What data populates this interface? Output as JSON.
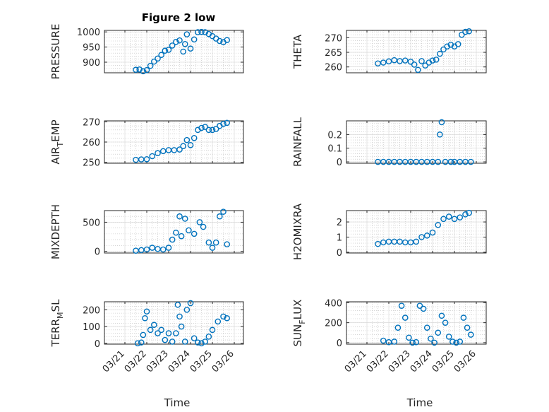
{
  "figure_title": "Figure 2 low",
  "time_ticks": [
    "03/21",
    "03/22",
    "03/23",
    "03/24",
    "03/25",
    "03/26"
  ],
  "xlabel": "Time",
  "marker_color": "#0072BD",
  "chart_data": [
    {
      "type": "scatter",
      "ylabel": "PRESSURE",
      "ylabel_sub": "",
      "ylabel_after": "",
      "ylim": [
        865,
        1005
      ],
      "yticks": [
        900,
        950,
        1000
      ],
      "x": [
        "03/21 12:00",
        "03/21 16:00",
        "03/21 20:00",
        "03/22 00:00",
        "03/22 04:00",
        "03/22 08:00",
        "03/22 12:00",
        "03/22 16:00",
        "03/22 20:00",
        "03/23 00:00",
        "03/23 04:00",
        "03/23 08:00",
        "03/23 12:00",
        "03/23 16:00",
        "03/23 18:00",
        "03/23 20:00",
        "03/24 00:00",
        "03/24 04:00",
        "03/24 08:00",
        "03/24 12:00",
        "03/24 16:00",
        "03/24 20:00",
        "03/25 00:00",
        "03/25 04:00",
        "03/25 08:00",
        "03/25 12:00",
        "03/25 16:00"
      ],
      "y": [
        875,
        876,
        870,
        874,
        888,
        902,
        912,
        924,
        938,
        941,
        955,
        967,
        972,
        935,
        960,
        992,
        945,
        975,
        999,
        1000,
        999,
        993,
        986,
        978,
        970,
        966,
        973
      ]
    },
    {
      "type": "scatter",
      "ylabel": "THETA",
      "ylabel_sub": "",
      "ylabel_after": "",
      "ylim": [
        258,
        272.5
      ],
      "yticks": [
        260,
        265,
        270
      ],
      "x": [
        "03/21 12:00",
        "03/21 18:00",
        "03/22 00:00",
        "03/22 06:00",
        "03/22 12:00",
        "03/22 18:00",
        "03/23 00:00",
        "03/23 04:00",
        "03/23 08:00",
        "03/23 12:00",
        "03/23 16:00",
        "03/23 20:00",
        "03/24 00:00",
        "03/24 04:00",
        "03/24 08:00",
        "03/24 12:00",
        "03/24 16:00",
        "03/24 20:00",
        "03/25 00:00",
        "03/25 04:00",
        "03/25 08:00",
        "03/25 12:00",
        "03/25 16:00"
      ],
      "y": [
        261.2,
        261.5,
        261.9,
        262.3,
        262.0,
        262.2,
        261.8,
        260.8,
        259.0,
        262.0,
        260.5,
        261.5,
        262.2,
        262.5,
        264.5,
        266.0,
        267.0,
        267.6,
        267.0,
        267.8,
        271.0,
        272.0,
        272.2
      ]
    },
    {
      "type": "scatter",
      "ylabel": "AIR",
      "ylabel_sub": "T",
      "ylabel_after": "EMP",
      "ylim": [
        249.5,
        270.5
      ],
      "yticks": [
        250,
        260,
        270
      ],
      "x": [
        "03/21 12:00",
        "03/21 18:00",
        "03/22 00:00",
        "03/22 06:00",
        "03/22 12:00",
        "03/22 18:00",
        "03/23 00:00",
        "03/23 06:00",
        "03/23 12:00",
        "03/23 16:00",
        "03/23 20:00",
        "03/24 00:00",
        "03/24 04:00",
        "03/24 08:00",
        "03/24 12:00",
        "03/24 16:00",
        "03/24 20:00",
        "03/25 00:00",
        "03/25 04:00",
        "03/25 08:00",
        "03/25 12:00",
        "03/25 16:00"
      ],
      "y": [
        251.2,
        251.4,
        251.5,
        253.0,
        254.5,
        255.5,
        256.0,
        256.0,
        256.3,
        258.0,
        261.0,
        258.5,
        262.0,
        266.0,
        267.0,
        267.5,
        266.0,
        266.0,
        266.5,
        268.0,
        269.0,
        269.5
      ]
    },
    {
      "type": "scatter",
      "ylabel": "RAINFALL",
      "ylabel_sub": "",
      "ylabel_after": "",
      "ylim": [
        -0.01,
        0.3
      ],
      "yticks": [
        0,
        0.1,
        0.2
      ],
      "x": [
        "03/21 12:00",
        "03/21 18:00",
        "03/22 00:00",
        "03/22 06:00",
        "03/22 12:00",
        "03/22 18:00",
        "03/23 00:00",
        "03/23 06:00",
        "03/23 12:00",
        "03/23 18:00",
        "03/24 00:00",
        "03/24 06:00",
        "03/24 08:00",
        "03/24 10:00",
        "03/24 14:00",
        "03/24 20:00",
        "03/25 00:00",
        "03/25 06:00",
        "03/25 12:00",
        "03/25 18:00"
      ],
      "y": [
        0,
        0,
        0,
        0,
        0,
        0,
        0,
        0,
        0,
        0,
        0,
        0,
        0.2,
        0.29,
        0,
        0,
        0,
        0,
        0,
        0
      ]
    },
    {
      "type": "scatter",
      "ylabel": "MIXDEPTH",
      "ylabel_sub": "",
      "ylabel_after": "",
      "ylim": [
        -30,
        700
      ],
      "yticks": [
        0,
        500
      ],
      "x": [
        "03/21 12:00",
        "03/21 18:00",
        "03/22 00:00",
        "03/22 06:00",
        "03/22 12:00",
        "03/22 18:00",
        "03/23 00:00",
        "03/23 04:00",
        "03/23 08:00",
        "03/23 12:00",
        "03/23 14:00",
        "03/23 18:00",
        "03/23 22:00",
        "03/24 04:00",
        "03/24 10:00",
        "03/24 14:00",
        "03/24 20:00",
        "03/25 00:00",
        "03/25 04:00",
        "03/25 08:00",
        "03/25 12:00",
        "03/25 16:00"
      ],
      "y": [
        10,
        20,
        30,
        60,
        40,
        30,
        60,
        200,
        320,
        600,
        260,
        560,
        360,
        300,
        500,
        420,
        150,
        60,
        150,
        600,
        680,
        120
      ]
    },
    {
      "type": "scatter",
      "ylabel": "H2OMIXRA",
      "ylabel_sub": "",
      "ylabel_after": "",
      "ylim": [
        -0.05,
        2.75
      ],
      "yticks": [
        0,
        1,
        2
      ],
      "x": [
        "03/21 12:00",
        "03/21 18:00",
        "03/22 00:00",
        "03/22 06:00",
        "03/22 12:00",
        "03/22 18:00",
        "03/23 00:00",
        "03/23 06:00",
        "03/23 12:00",
        "03/23 18:00",
        "03/24 00:00",
        "03/24 06:00",
        "03/24 12:00",
        "03/24 18:00",
        "03/25 00:00",
        "03/25 06:00",
        "03/25 12:00",
        "03/25 16:00"
      ],
      "y": [
        0.55,
        0.65,
        0.7,
        0.7,
        0.7,
        0.65,
        0.65,
        0.7,
        1.0,
        1.1,
        1.3,
        1.8,
        2.2,
        2.35,
        2.2,
        2.3,
        2.5,
        2.6
      ]
    },
    {
      "type": "scatter",
      "ylabel": "TERR",
      "ylabel_sub": "M",
      "ylabel_after": "SL",
      "ylim": [
        -5,
        248
      ],
      "yticks": [
        0,
        100,
        200
      ],
      "x": [
        "03/21 14:00",
        "03/21 18:00",
        "03/21 20:00",
        "03/21 22:00",
        "03/22 00:00",
        "03/22 04:00",
        "03/22 08:00",
        "03/22 12:00",
        "03/22 16:00",
        "03/22 20:00",
        "03/23 00:00",
        "03/23 04:00",
        "03/23 08:00",
        "03/23 10:00",
        "03/23 12:00",
        "03/23 14:00",
        "03/23 18:00",
        "03/23 20:00",
        "03/24 00:00",
        "03/24 04:00",
        "03/24 08:00",
        "03/24 12:00",
        "03/24 16:00",
        "03/24 20:00",
        "03/25 00:00",
        "03/25 06:00",
        "03/25 12:00",
        "03/25 16:00"
      ],
      "y": [
        0,
        5,
        50,
        150,
        190,
        80,
        110,
        60,
        80,
        20,
        60,
        10,
        60,
        230,
        160,
        100,
        10,
        200,
        240,
        30,
        5,
        0,
        10,
        40,
        80,
        130,
        160,
        150
      ]
    },
    {
      "type": "scatter",
      "ylabel": "SUN",
      "ylabel_sub": "F",
      "ylabel_after": "LUX",
      "ylim": [
        -15,
        410
      ],
      "yticks": [
        0,
        200,
        400
      ],
      "x": [
        "03/21 18:00",
        "03/22 00:00",
        "03/22 06:00",
        "03/22 10:00",
        "03/22 14:00",
        "03/22 18:00",
        "03/22 22:00",
        "03/23 02:00",
        "03/23 06:00",
        "03/23 10:00",
        "03/23 14:00",
        "03/23 18:00",
        "03/23 22:00",
        "03/24 02:00",
        "03/24 06:00",
        "03/24 10:00",
        "03/24 14:00",
        "03/24 18:00",
        "03/24 22:00",
        "03/25 02:00",
        "03/25 06:00",
        "03/25 10:00",
        "03/25 14:00",
        "03/25 18:00"
      ],
      "y": [
        20,
        5,
        10,
        150,
        370,
        250,
        50,
        0,
        5,
        370,
        340,
        150,
        40,
        0,
        100,
        270,
        200,
        60,
        10,
        0,
        10,
        250,
        150,
        80
      ]
    }
  ]
}
